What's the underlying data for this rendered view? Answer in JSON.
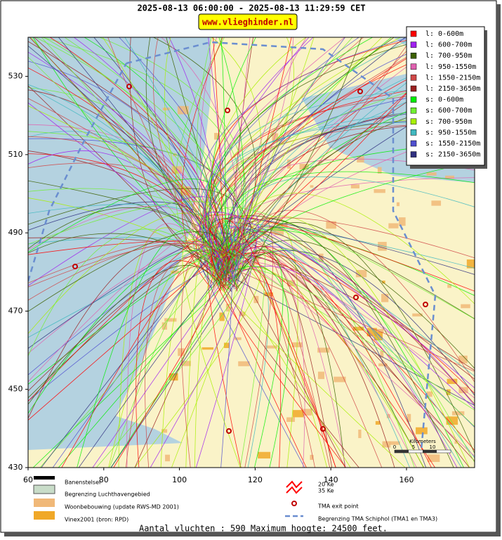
{
  "header": {
    "title": "2025-08-13 06:00:00 - 2025-08-13 11:29:59 CET",
    "site": "www.vlieghinder.nl"
  },
  "map": {
    "xlim": [
      60,
      178
    ],
    "ylim": [
      430,
      540
    ],
    "xticks": [
      60,
      80,
      100,
      120,
      140,
      160
    ],
    "yticks": [
      430,
      450,
      470,
      490,
      510,
      530
    ]
  },
  "legend": [
    {
      "label": "l: 0-600m",
      "color": "#ff0000"
    },
    {
      "label": "l: 600-700m",
      "color": "#a020f0"
    },
    {
      "label": "l: 700-950m",
      "color": "#3c6000"
    },
    {
      "label": "l: 950-1550m",
      "color": "#e060b0"
    },
    {
      "label": "l: 1550-2150m",
      "color": "#d04848"
    },
    {
      "label": "l: 2150-3650m",
      "color": "#9a2020"
    },
    {
      "label": "s: 0-600m",
      "color": "#00ee00"
    },
    {
      "label": "s: 600-700m",
      "color": "#70f030"
    },
    {
      "label": "s: 700-950m",
      "color": "#a8f000"
    },
    {
      "label": "s: 950-1550m",
      "color": "#40b8c0"
    },
    {
      "label": "s: 1550-2150m",
      "color": "#5050d0"
    },
    {
      "label": "s: 2150-3650m",
      "color": "#303080"
    }
  ],
  "key": [
    "Banenstelsel",
    "Begrenzing Luchthavengebied",
    "Woonbebouwing (update RWS-MD 2001)",
    "Vinex2001 (bron: RPD)",
    "20 Ke",
    "35 Ke",
    "TMA exit point",
    "Begrenzing TMA Schiphol  (TMA1 en TMA3)"
  ],
  "scale": {
    "title": "Kilometers",
    "ticks": [
      0,
      5,
      10
    ]
  },
  "footer": "Aantal vluchten : 590 Maximum hoogte: 24500 feet."
}
